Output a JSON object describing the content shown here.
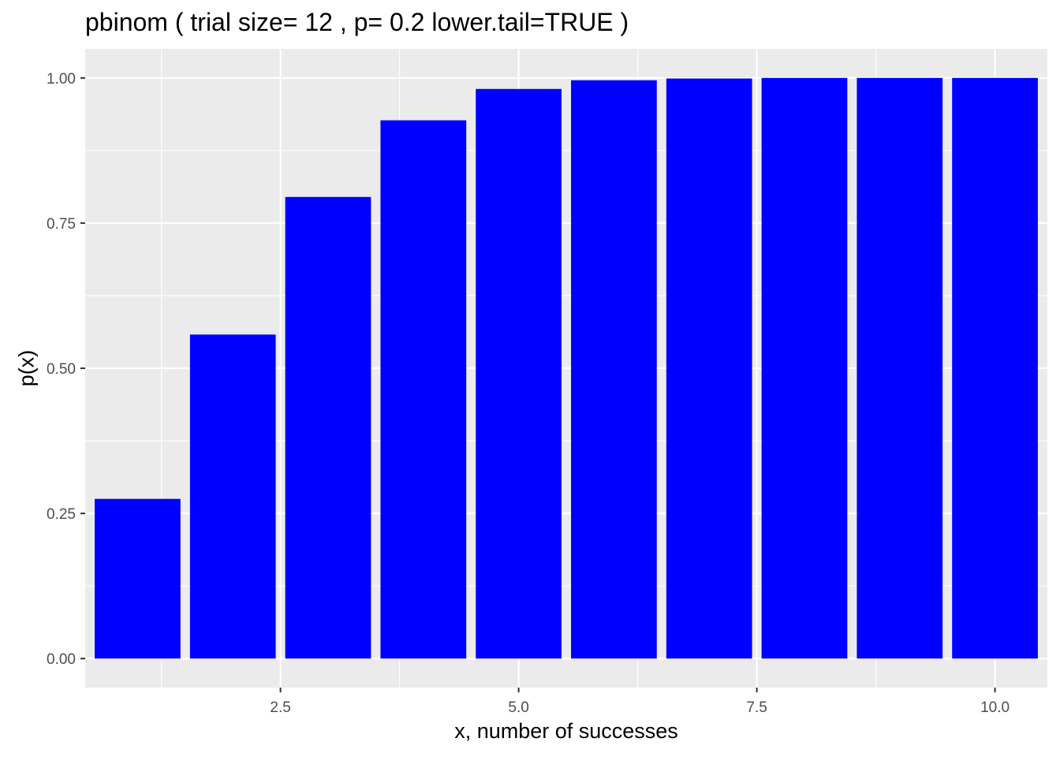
{
  "chart_data": {
    "type": "bar",
    "title": "pbinom ( trial size= 12 , p= 0.2 lower.tail=TRUE )",
    "xlabel": "x, number of successes",
    "ylabel": "p(x)",
    "x": [
      1,
      2,
      3,
      4,
      5,
      6,
      7,
      8,
      9,
      10
    ],
    "values": [
      0.275,
      0.558,
      0.795,
      0.927,
      0.981,
      0.996,
      0.999,
      1.0,
      1.0,
      1.0
    ],
    "xlim": [
      0.45,
      10.55
    ],
    "ylim": [
      -0.05,
      1.05
    ],
    "xticks": [
      2.5,
      5.0,
      7.5,
      10.0
    ],
    "xtick_labels": [
      "2.5",
      "5.0",
      "7.5",
      "10.0"
    ],
    "yticks": [
      0.0,
      0.25,
      0.5,
      0.75,
      1.0
    ],
    "ytick_labels": [
      "0.00",
      "0.25",
      "0.50",
      "0.75",
      "1.00"
    ],
    "bar_color": "#0000FF",
    "panel_background": "#EBEBEB",
    "grid_color": "#FFFFFF",
    "grid": true,
    "legend": "none"
  }
}
